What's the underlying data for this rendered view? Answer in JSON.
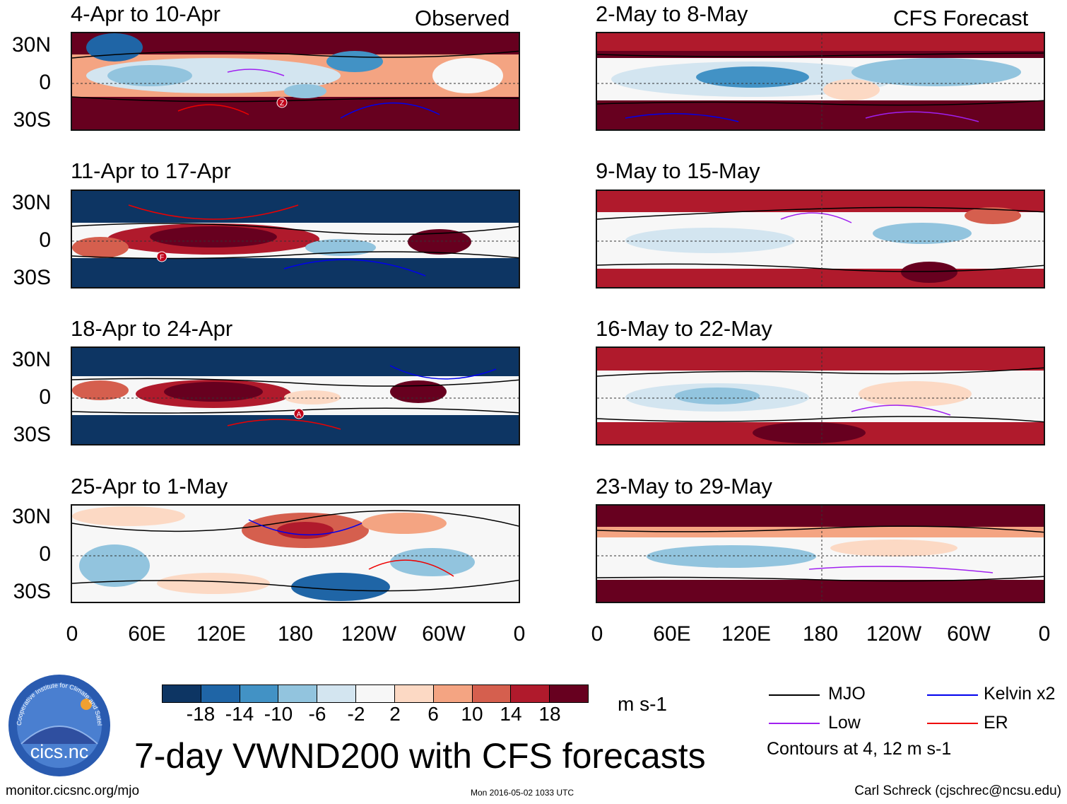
{
  "figure": {
    "title": "7-day VWND200 with CFS forecasts",
    "observed_tag": "Observed",
    "forecast_tag": "CFS Forecast",
    "units": "m s-1",
    "contour_note": "Contours at 4, 12 m s-1",
    "footer_left": "monitor.cicsnc.org/mjo",
    "footer_center": "Mon 2016-05-02 1033 UTC",
    "footer_right": "Carl Schreck (cjschrec@ncsu.edu)",
    "logo_name": "cics.nc",
    "logo_ring_text": "Cooperative Institute for Climate and Satellites"
  },
  "panels": {
    "observed": [
      {
        "title": "4-Apr to 10-Apr"
      },
      {
        "title": "11-Apr to 17-Apr"
      },
      {
        "title": "18-Apr to 24-Apr"
      },
      {
        "title": "25-Apr to 1-May"
      }
    ],
    "forecast": [
      {
        "title": "2-May to 8-May"
      },
      {
        "title": "9-May to 15-May"
      },
      {
        "title": "16-May to 22-May"
      },
      {
        "title": "23-May to 29-May"
      }
    ]
  },
  "axes": {
    "lat_labels": [
      "30N",
      "0",
      "30S"
    ],
    "lon_labels": [
      "0",
      "60E",
      "120E",
      "180",
      "120W",
      "60W",
      "0"
    ]
  },
  "colorbar": {
    "labels": [
      "-18",
      "-14",
      "-10",
      "-6",
      "-2",
      "2",
      "6",
      "10",
      "14",
      "18"
    ],
    "colors": [
      "#0d3563",
      "#1f65a6",
      "#4292c5",
      "#92c4de",
      "#d3e5f0",
      "#f7f7f7",
      "#fcd9c4",
      "#f4a482",
      "#d55f4e",
      "#b01a2c",
      "#67001f"
    ]
  },
  "legend": {
    "items": [
      {
        "label": "MJO",
        "color": "#000000"
      },
      {
        "label": "Kelvin x2",
        "color": "#0000ee"
      },
      {
        "label": "Low",
        "color": "#a020f0"
      },
      {
        "label": "ER",
        "color": "#ee0000"
      }
    ]
  },
  "markers": [
    {
      "letter": "Z",
      "panel": "obs-1"
    },
    {
      "letter": "F",
      "panel": "obs-2"
    },
    {
      "letter": "A",
      "panel": "obs-3"
    }
  ]
}
